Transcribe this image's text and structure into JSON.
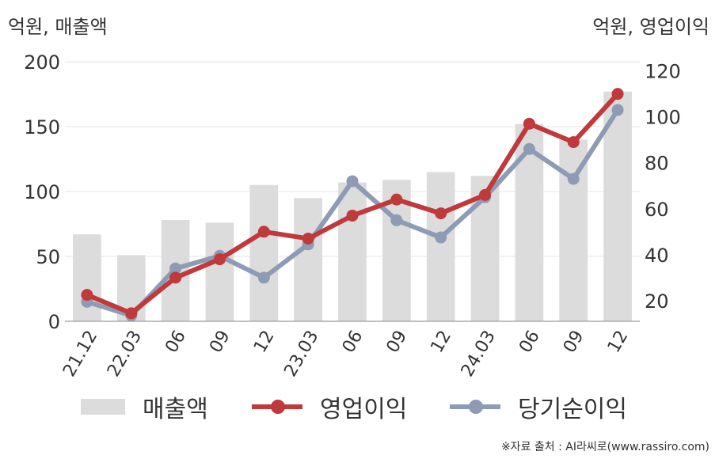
{
  "units": {
    "left": "억원, 매출액",
    "right": "억원, 영업이익"
  },
  "legend": {
    "sales": "매출액",
    "operating": "영업이익",
    "net": "당기순이익"
  },
  "source": "※자료 출처 : AI라씨로(www.rassiro.com)",
  "colors": {
    "bar": "#dcdcdc",
    "operating": "#c0393b",
    "net": "#8e9bb5",
    "axis": "#aaaaaa",
    "grid": "#e6e6e6"
  },
  "chart_data": {
    "type": "bar+line",
    "categories": [
      "21.12",
      "22.03",
      "06",
      "09",
      "12",
      "23.03",
      "06",
      "09",
      "12",
      "24.03",
      "06",
      "09",
      "12"
    ],
    "left_axis": {
      "ylim": [
        0,
        200
      ],
      "ticks": [
        0,
        50,
        100,
        150,
        200
      ]
    },
    "right_axis": {
      "ylim": [
        11,
        124
      ],
      "ticks": [
        20,
        40,
        60,
        80,
        100,
        120
      ]
    },
    "grid": true,
    "legend_position": "bottom",
    "series": [
      {
        "name": "매출액",
        "type": "bar",
        "axis": "left",
        "values": [
          67,
          51,
          78,
          76,
          105,
          95,
          107,
          109,
          115,
          112,
          152,
          140,
          177
        ]
      },
      {
        "name": "영업이익",
        "type": "line",
        "axis": "right",
        "values": [
          22.5,
          14.5,
          30,
          38,
          50,
          47,
          57,
          64,
          58,
          66,
          97,
          89,
          110
        ]
      },
      {
        "name": "당기순이익",
        "type": "line",
        "axis": "right",
        "values": [
          19.5,
          13.5,
          34,
          39.5,
          30,
          44.5,
          72,
          55,
          47.5,
          65,
          86,
          73,
          103
        ]
      }
    ]
  }
}
